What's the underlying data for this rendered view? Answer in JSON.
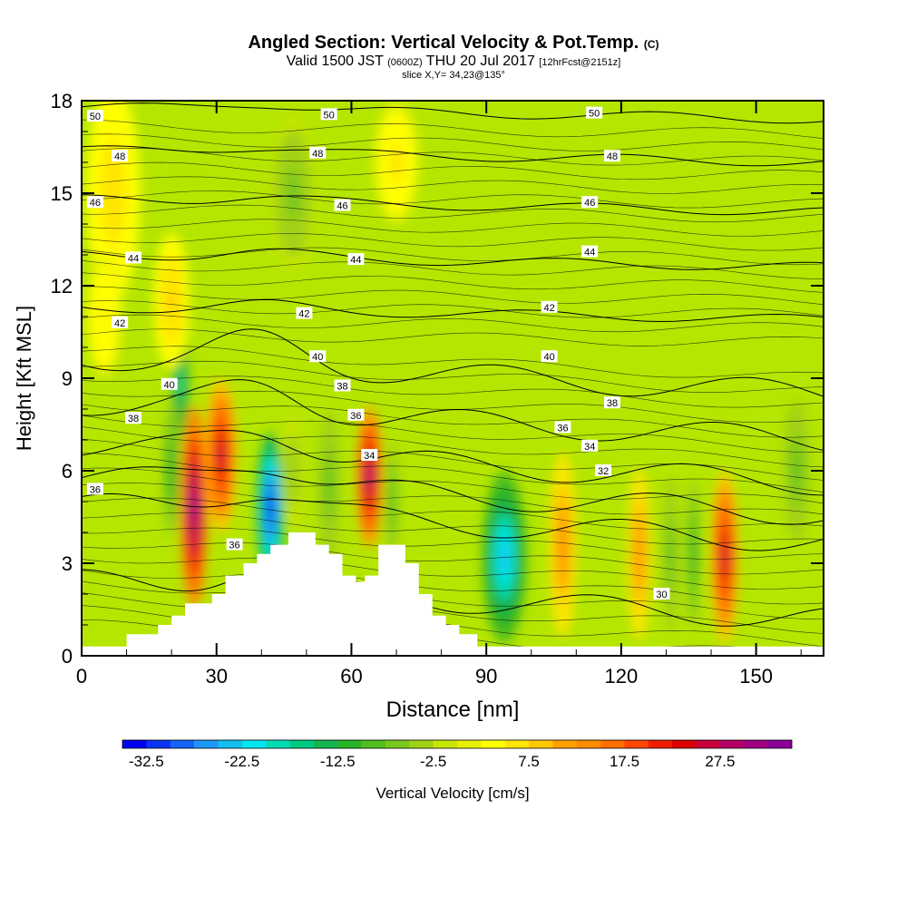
{
  "title": {
    "main": "Angled Section: Vertical Velocity & Pot.Temp.",
    "main_suffix": "(C)",
    "valid_prefix": "Valid 1500 JST",
    "valid_z": "(0600Z)",
    "valid_date": "THU 20 Jul 2017",
    "valid_fcst": "[12hrFcst@2151z]",
    "slice": "slice X,Y= 34,23@135°"
  },
  "chart_data": {
    "type": "heatmap",
    "xlabel": "Distance [nm]",
    "ylabel": "Height [Kft MSL]",
    "xlim": [
      0,
      165
    ],
    "ylim": [
      0,
      18
    ],
    "x_ticks": [
      "0",
      "30",
      "60",
      "90",
      "120",
      "150"
    ],
    "y_ticks": [
      "0",
      "3",
      "6",
      "9",
      "12",
      "15",
      "18"
    ],
    "colorbar": {
      "label": "Vertical Velocity [cm/s]",
      "tick_labels": [
        "-32.5",
        "-22.5",
        "-12.5",
        "-2.5",
        "7.5",
        "17.5",
        "27.5"
      ],
      "min": -35,
      "max": 35,
      "step": 2.5,
      "colors": [
        "#0000f0",
        "#0a32f5",
        "#1464f5",
        "#1e96f5",
        "#14bef0",
        "#00e6f0",
        "#00dcb4",
        "#00c882",
        "#14b450",
        "#28b428",
        "#50be1e",
        "#78c81e",
        "#a0d214",
        "#c8e600",
        "#e6f000",
        "#ffff00",
        "#ffe600",
        "#ffc800",
        "#ffa000",
        "#ff8c00",
        "#ff6e00",
        "#ff4600",
        "#f01e00",
        "#dc0000",
        "#c8003c",
        "#b40064",
        "#a00082",
        "#8c0096"
      ]
    },
    "theta_contours": [
      {
        "label": "50",
        "height": 17.8
      },
      {
        "label": "48",
        "height": 16.4
      },
      {
        "label": "46",
        "height": 14.8
      },
      {
        "label": "44",
        "height": 13.0
      },
      {
        "label": "42",
        "height": 11.3
      },
      {
        "label": "40",
        "height": 9.7
      },
      {
        "label": "38",
        "height": 8.2
      },
      {
        "label": "36",
        "height": 6.8
      },
      {
        "label": "34",
        "height": 5.8
      },
      {
        "label": "32",
        "height": 4.9
      },
      {
        "label": "30",
        "height": 2.4
      }
    ],
    "contour_labels": [
      {
        "text": "50",
        "x": 3,
        "y": 17.5
      },
      {
        "text": "50",
        "x": 55,
        "y": 17.55
      },
      {
        "text": "50",
        "x": 114,
        "y": 17.6
      },
      {
        "text": "48",
        "x": 8.5,
        "y": 16.2
      },
      {
        "text": "48",
        "x": 52.5,
        "y": 16.3
      },
      {
        "text": "48",
        "x": 118,
        "y": 16.2
      },
      {
        "text": "46",
        "x": 3,
        "y": 14.7
      },
      {
        "text": "46",
        "x": 58,
        "y": 14.6
      },
      {
        "text": "46",
        "x": 113,
        "y": 14.7
      },
      {
        "text": "44",
        "x": 11.5,
        "y": 12.9
      },
      {
        "text": "44",
        "x": 61,
        "y": 12.85
      },
      {
        "text": "44",
        "x": 113,
        "y": 13.1
      },
      {
        "text": "42",
        "x": 8.5,
        "y": 10.8
      },
      {
        "text": "42",
        "x": 49.5,
        "y": 11.1
      },
      {
        "text": "42",
        "x": 104,
        "y": 11.3
      },
      {
        "text": "40",
        "x": 19.5,
        "y": 8.8
      },
      {
        "text": "40",
        "x": 52.5,
        "y": 9.7
      },
      {
        "text": "40",
        "x": 104,
        "y": 9.7
      },
      {
        "text": "38",
        "x": 11.5,
        "y": 7.7
      },
      {
        "text": "38",
        "x": 58,
        "y": 8.75
      },
      {
        "text": "38",
        "x": 118,
        "y": 8.2
      },
      {
        "text": "36",
        "x": 3,
        "y": 5.4
      },
      {
        "text": "36",
        "x": 61,
        "y": 7.8
      },
      {
        "text": "36",
        "x": 107,
        "y": 7.4
      },
      {
        "text": "36",
        "x": 34,
        "y": 3.6
      },
      {
        "text": "34",
        "x": 64,
        "y": 6.5
      },
      {
        "text": "34",
        "x": 113,
        "y": 6.8
      },
      {
        "text": "32",
        "x": 116,
        "y": 6.0
      },
      {
        "text": "30",
        "x": 129,
        "y": 2.0
      }
    ],
    "terrain_profile": [
      [
        0,
        0.3
      ],
      [
        10,
        0.3
      ],
      [
        10,
        0.7
      ],
      [
        17,
        0.7
      ],
      [
        17,
        1.0
      ],
      [
        20,
        1.0
      ],
      [
        20,
        1.3
      ],
      [
        23,
        1.3
      ],
      [
        23,
        1.7
      ],
      [
        29,
        1.7
      ],
      [
        29,
        2.0
      ],
      [
        32,
        2.0
      ],
      [
        32,
        2.6
      ],
      [
        36,
        2.6
      ],
      [
        36,
        3.0
      ],
      [
        39,
        3.0
      ],
      [
        39,
        3.3
      ],
      [
        42,
        3.3
      ],
      [
        42,
        3.6
      ],
      [
        46,
        3.6
      ],
      [
        46,
        4.0
      ],
      [
        52,
        4.0
      ],
      [
        52,
        3.6
      ],
      [
        55,
        3.6
      ],
      [
        55,
        3.3
      ],
      [
        58,
        3.3
      ],
      [
        58,
        2.6
      ],
      [
        61,
        2.6
      ],
      [
        61,
        2.4
      ],
      [
        63,
        2.4
      ],
      [
        63,
        2.6
      ],
      [
        66,
        2.6
      ],
      [
        66,
        3.6
      ],
      [
        72,
        3.6
      ],
      [
        72,
        3.0
      ],
      [
        75,
        3.0
      ],
      [
        75,
        2.0
      ],
      [
        78,
        2.0
      ],
      [
        78,
        1.3
      ],
      [
        81,
        1.3
      ],
      [
        81,
        1.0
      ],
      [
        84,
        1.0
      ],
      [
        84,
        0.7
      ],
      [
        88,
        0.7
      ],
      [
        88,
        0.3
      ],
      [
        165,
        0.3
      ]
    ],
    "vv_cells": [
      {
        "x": 25,
        "z": 4.8,
        "rx": 3.0,
        "rz": 3.3,
        "v": 34
      },
      {
        "x": 31,
        "z": 6.5,
        "rx": 3.5,
        "rz": 2.5,
        "v": 26
      },
      {
        "x": 22,
        "z": 8.8,
        "rx": 2.0,
        "rz": 1.8,
        "v": -20
      },
      {
        "x": 20,
        "z": 6.0,
        "rx": 2.0,
        "rz": 2.2,
        "v": -12
      },
      {
        "x": 42,
        "z": 4.8,
        "rx": 3.0,
        "rz": 2.4,
        "v": -34
      },
      {
        "x": 47,
        "z": 6.0,
        "rx": 2.5,
        "rz": 1.8,
        "v": -5
      },
      {
        "x": 55,
        "z": 5.5,
        "rx": 2.5,
        "rz": 2.5,
        "v": -8
      },
      {
        "x": 64,
        "z": 5.8,
        "rx": 2.8,
        "rz": 2.3,
        "v": 30
      },
      {
        "x": 69,
        "z": 5.0,
        "rx": 1.5,
        "rz": 2.0,
        "v": -10
      },
      {
        "x": 94,
        "z": 3.2,
        "rx": 5.0,
        "rz": 2.8,
        "v": -24
      },
      {
        "x": 107,
        "z": 3.6,
        "rx": 3.0,
        "rz": 3.0,
        "v": 14
      },
      {
        "x": 124,
        "z": 3.3,
        "rx": 2.5,
        "rz": 2.8,
        "v": 14
      },
      {
        "x": 131,
        "z": 3.3,
        "rx": 2.0,
        "rz": 2.5,
        "v": -8
      },
      {
        "x": 136,
        "z": 3.3,
        "rx": 1.5,
        "rz": 2.5,
        "v": -12
      },
      {
        "x": 143,
        "z": 3.2,
        "rx": 3.0,
        "rz": 2.8,
        "v": 26
      },
      {
        "x": 159,
        "z": 6.0,
        "rx": 3.0,
        "rz": 2.3,
        "v": -8
      },
      {
        "x": 7,
        "z": 15.0,
        "rx": 6.0,
        "rz": 3.5,
        "v": 7
      },
      {
        "x": 20,
        "z": 11.5,
        "rx": 4.0,
        "rz": 2.2,
        "v": 8
      },
      {
        "x": 47,
        "z": 15.0,
        "rx": 5.0,
        "rz": 2.5,
        "v": -6
      },
      {
        "x": 70,
        "z": 16.0,
        "rx": 5.0,
        "rz": 2.0,
        "v": 6
      },
      {
        "x": 5,
        "z": 11.0,
        "rx": 4.0,
        "rz": 2.0,
        "v": 5
      }
    ]
  }
}
